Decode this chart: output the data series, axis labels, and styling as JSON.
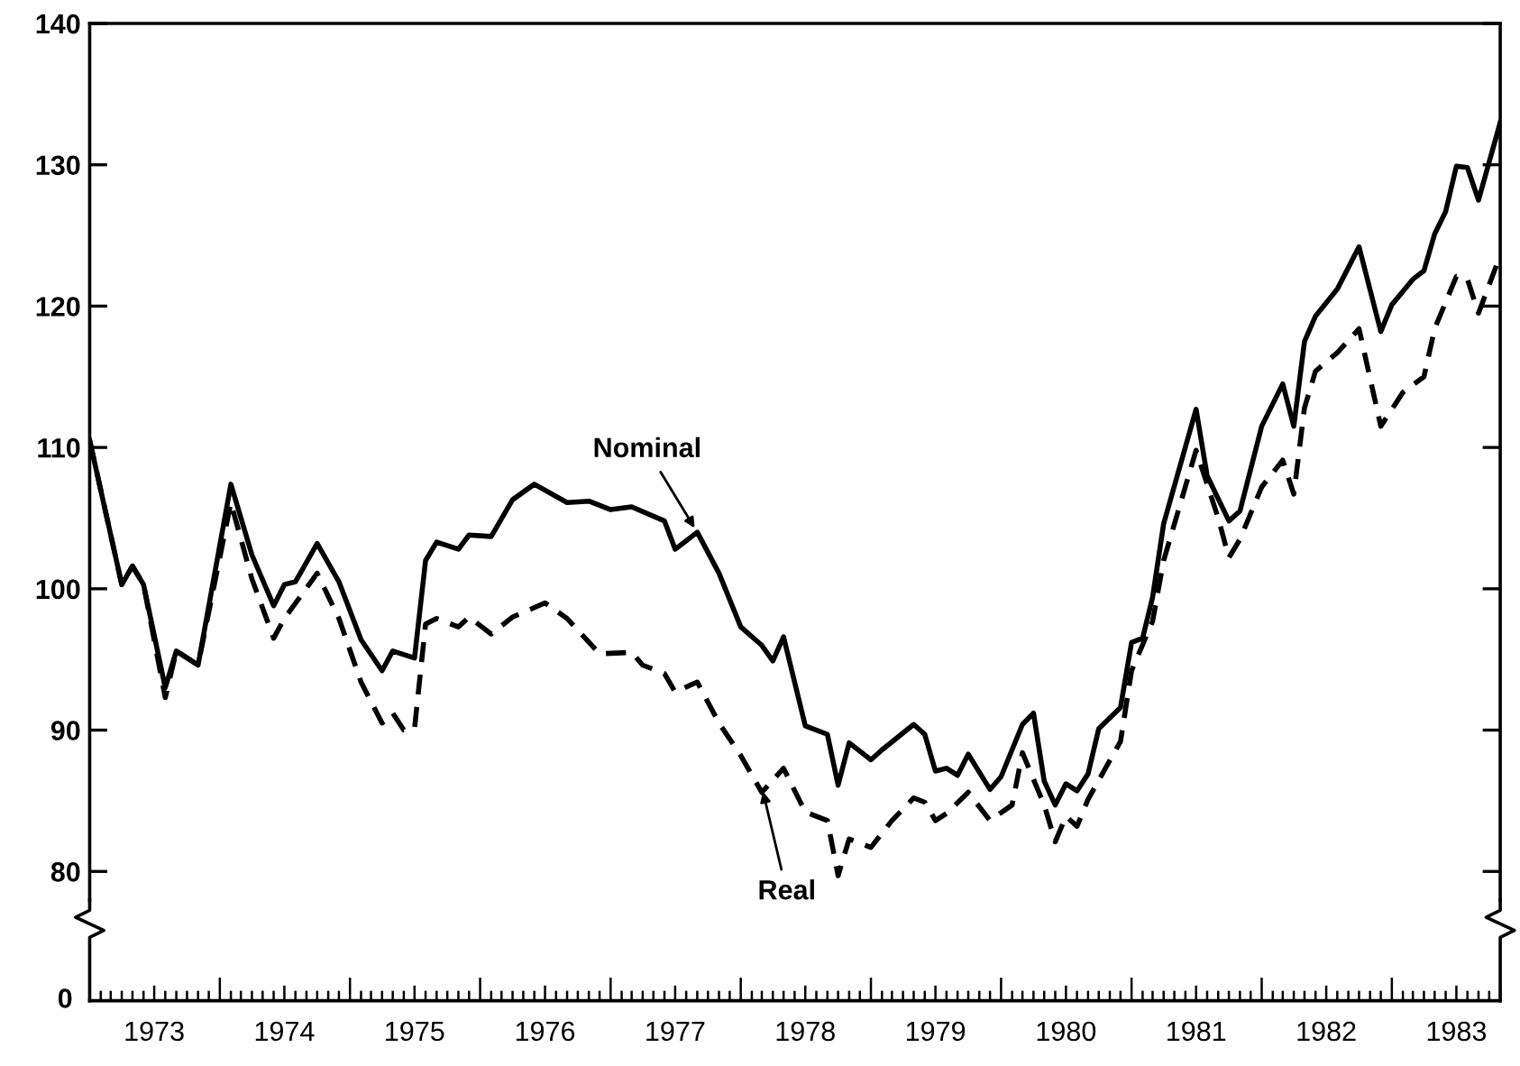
{
  "chart_data": {
    "type": "line",
    "xlim": [
      "1973-01",
      "1983-11"
    ],
    "xticks": [
      {
        "value": "1973-07",
        "label": "1973"
      },
      {
        "value": "1974-07",
        "label": "1974"
      },
      {
        "value": "1975-07",
        "label": "1975"
      },
      {
        "value": "1976-07",
        "label": "1976"
      },
      {
        "value": "1977-07",
        "label": "1977"
      },
      {
        "value": "1978-07",
        "label": "1978"
      },
      {
        "value": "1979-07",
        "label": "1979"
      },
      {
        "value": "1980-07",
        "label": "1980"
      },
      {
        "value": "1981-07",
        "label": "1981"
      },
      {
        "value": "1982-07",
        "label": "1982"
      },
      {
        "value": "1983-07",
        "label": "1983"
      }
    ],
    "ylim": [
      78,
      140
    ],
    "yticks": [
      80,
      90,
      100,
      110,
      120,
      130,
      140
    ],
    "grid": false,
    "legend": false,
    "marker": "none",
    "series": [
      {
        "color": "#000000",
        "line_style": "solid",
        "x": [
          "1973-01",
          "1973-04",
          "1973-05",
          "1973-06",
          "1973-08",
          "1973-09",
          "1973-11",
          "1974-02",
          "1974-04",
          "1974-06",
          "1974-07",
          "1974-08",
          "1974-10",
          "1974-12",
          "1975-02",
          "1975-04",
          "1975-05",
          "1975-07",
          "1975-08",
          "1975-09",
          "1975-11",
          "1975-12",
          "1976-02",
          "1976-04",
          "1976-06",
          "1976-09",
          "1976-11",
          "1977-01",
          "1977-03",
          "1977-06",
          "1977-07",
          "1977-09",
          "1977-11",
          "1978-01",
          "1978-03",
          "1978-04",
          "1978-05",
          "1978-07",
          "1978-09",
          "1978-10",
          "1978-11",
          "1979-01",
          "1979-02",
          "1979-05",
          "1979-06",
          "1979-07",
          "1979-08",
          "1979-09",
          "1979-10",
          "1979-12",
          "1980-01",
          "1980-03",
          "1980-04",
          "1980-05",
          "1980-06",
          "1980-07",
          "1980-08",
          "1980-09",
          "1980-10",
          "1980-12",
          "1981-01",
          "1981-02",
          "1981-03",
          "1981-04",
          "1981-07",
          "1981-08",
          "1981-10",
          "1981-11",
          "1982-01",
          "1982-03",
          "1982-04",
          "1982-05",
          "1982-06",
          "1982-08",
          "1982-10",
          "1982-12",
          "1983-01",
          "1983-03",
          "1983-04",
          "1983-05",
          "1983-06",
          "1983-07",
          "1983-08",
          "1983-09",
          "1983-11"
        ],
        "values": [
          110.5,
          100.3,
          101.6,
          100.3,
          93.0,
          95.6,
          94.6,
          107.4,
          102.4,
          98.8,
          100.3,
          100.5,
          103.2,
          100.5,
          96.4,
          94.2,
          95.6,
          95.1,
          102.0,
          103.3,
          102.8,
          103.8,
          103.7,
          106.3,
          107.4,
          106.1,
          106.2,
          105.6,
          105.8,
          104.8,
          102.8,
          104.0,
          101.1,
          97.3,
          96.0,
          94.9,
          96.6,
          90.3,
          89.7,
          86.1,
          89.1,
          87.9,
          88.6,
          90.4,
          89.7,
          87.1,
          87.3,
          86.8,
          88.3,
          85.8,
          86.7,
          90.4,
          91.2,
          86.4,
          84.7,
          86.2,
          85.7,
          86.9,
          90.1,
          91.6,
          96.2,
          96.5,
          99.4,
          104.6,
          112.7,
          108.0,
          104.8,
          105.5,
          111.5,
          114.5,
          111.5,
          117.5,
          119.3,
          121.2,
          124.2,
          118.2,
          120.1,
          121.9,
          122.5,
          125.1,
          126.7,
          129.9,
          129.8,
          127.5,
          133.0
        ]
      },
      {
        "color": "#000000",
        "line_style": "dashed",
        "x": [
          "1973-01",
          "1973-04",
          "1973-05",
          "1973-06",
          "1973-08",
          "1973-09",
          "1973-11",
          "1974-02",
          "1974-04",
          "1974-06",
          "1974-07",
          "1974-10",
          "1974-12",
          "1975-02",
          "1975-04",
          "1975-05",
          "1975-06",
          "1975-07",
          "1975-08",
          "1975-09",
          "1975-11",
          "1975-12",
          "1976-02",
          "1976-04",
          "1976-07",
          "1976-09",
          "1976-12",
          "1977-03",
          "1977-04",
          "1977-06",
          "1977-07",
          "1977-09",
          "1977-11",
          "1978-01",
          "1978-03",
          "1978-05",
          "1978-07",
          "1978-09",
          "1978-10",
          "1978-11",
          "1979-01",
          "1979-03",
          "1979-05",
          "1979-06",
          "1979-07",
          "1979-08",
          "1979-10",
          "1979-12",
          "1980-02",
          "1980-03",
          "1980-05",
          "1980-06",
          "1980-07",
          "1980-08",
          "1980-09",
          "1980-12",
          "1981-01",
          "1981-03",
          "1981-04",
          "1981-07",
          "1981-09",
          "1981-10",
          "1981-11",
          "1982-01",
          "1982-03",
          "1982-04",
          "1982-05",
          "1982-06",
          "1982-08",
          "1982-10",
          "1982-12",
          "1983-02",
          "1983-04",
          "1983-05",
          "1983-07",
          "1983-08",
          "1983-09",
          "1983-11"
        ],
        "values": [
          110.5,
          100.3,
          101.6,
          100.3,
          92.3,
          95.6,
          94.6,
          106.1,
          100.7,
          96.5,
          97.9,
          101.1,
          97.9,
          93.4,
          90.5,
          91.2,
          90.0,
          90.1,
          97.5,
          97.9,
          97.3,
          98.0,
          96.8,
          98.0,
          99.0,
          97.9,
          95.4,
          95.5,
          94.6,
          94.0,
          92.7,
          93.4,
          90.5,
          88.2,
          85.6,
          87.3,
          84.2,
          83.6,
          79.7,
          82.3,
          81.7,
          83.6,
          85.2,
          84.9,
          83.6,
          84.1,
          85.6,
          83.6,
          84.7,
          88.4,
          84.7,
          82.1,
          83.9,
          83.2,
          85.1,
          89.2,
          94.2,
          97.7,
          102.0,
          109.8,
          105.0,
          102.2,
          103.5,
          107.2,
          109.1,
          106.7,
          112.8,
          115.4,
          116.7,
          118.4,
          111.5,
          113.9,
          115.0,
          118.4,
          122.1,
          121.9,
          119.5,
          123.6
        ]
      }
    ],
    "annotations": [
      {
        "text": "Nominal",
        "x": "1977-09",
        "y": 104.0
      },
      {
        "text": "Real",
        "x": "1978-03",
        "y": 86.0
      },
      "0"
    ]
  }
}
